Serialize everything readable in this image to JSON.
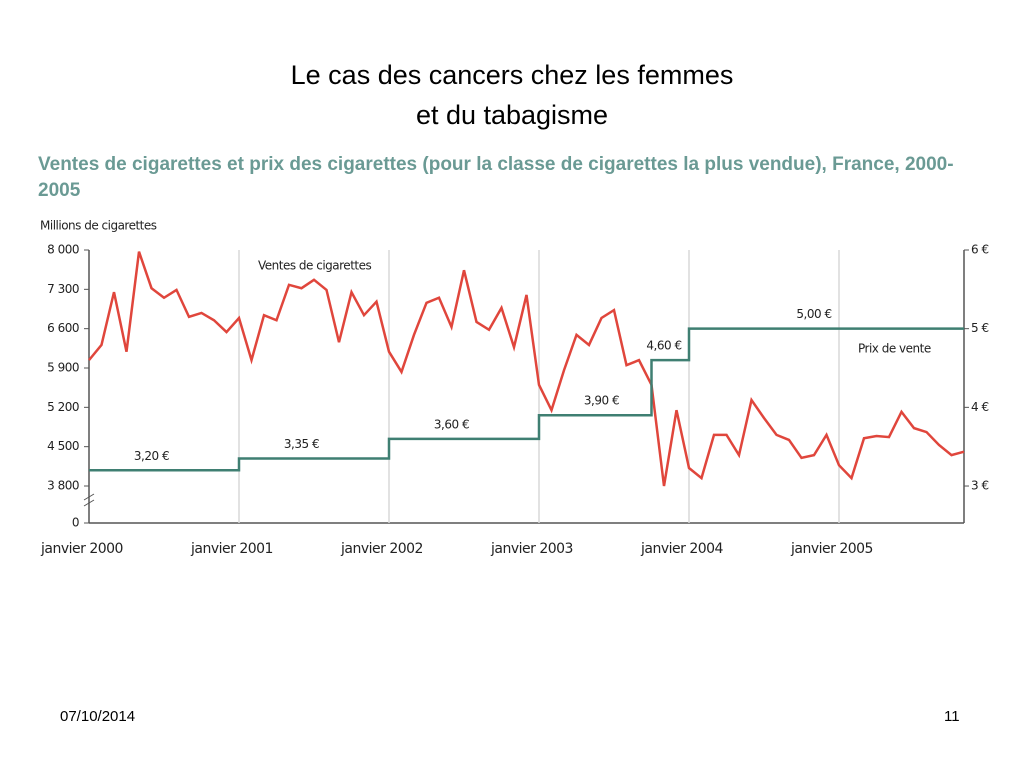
{
  "slide": {
    "title_lines": [
      "Le cas des cancers chez les femmes",
      "et du tabagisme"
    ],
    "date": "07/10/2014",
    "page": "11"
  },
  "chart_data": {
    "type": "line",
    "title": "Ventes de cigarettes et prix des cigarettes (pour la classe de cigarettes la plus vendue), France, 2000-2005",
    "y_label": "Millions de cigarettes",
    "categories": [
      "janvier 2000",
      null,
      null,
      null,
      null,
      null,
      null,
      null,
      null,
      null,
      null,
      null,
      "janvier 2001",
      null,
      null,
      null,
      null,
      null,
      null,
      null,
      null,
      null,
      null,
      null,
      "janvier 2002",
      null,
      null,
      null,
      null,
      null,
      null,
      null,
      null,
      null,
      null,
      null,
      "janvier 2003",
      null,
      null,
      null,
      null,
      null,
      null,
      null,
      null,
      null,
      null,
      null,
      "janvier 2004",
      null,
      null,
      null,
      null,
      null,
      null,
      null,
      null,
      null,
      null,
      null,
      "janvier 2005",
      null,
      null,
      null,
      null,
      null,
      null,
      null,
      null,
      null,
      null
    ],
    "series": [
      {
        "name": "Ventes de cigarettes",
        "color": "#e0463c",
        "axis": "y",
        "values": [
          6040,
          6310,
          7250,
          6190,
          7970,
          7320,
          7150,
          7290,
          6810,
          6880,
          6750,
          6540,
          6790,
          6040,
          6840,
          6750,
          7380,
          7320,
          7470,
          7290,
          6360,
          7250,
          6840,
          7080,
          6190,
          5830,
          6490,
          7060,
          7150,
          6630,
          7640,
          6720,
          6580,
          6970,
          6270,
          7200,
          5600,
          5150,
          5860,
          6490,
          6310,
          6790,
          6930,
          5950,
          6040,
          5600,
          3690,
          5150,
          4120,
          3940,
          4710,
          4710,
          4350,
          5330,
          5010,
          4710,
          4620,
          4300,
          4350,
          4710,
          4170,
          3940,
          4650,
          4690,
          4670,
          5120,
          4830,
          4760,
          4530,
          4350,
          4410
        ]
      },
      {
        "name": "Prix de vente",
        "color": "#3f7f72",
        "axis": "y2",
        "step": true,
        "values": [
          3.2,
          3.2,
          3.2,
          3.2,
          3.2,
          3.2,
          3.2,
          3.2,
          3.2,
          3.2,
          3.2,
          3.2,
          3.35,
          3.35,
          3.35,
          3.35,
          3.35,
          3.35,
          3.35,
          3.35,
          3.35,
          3.35,
          3.35,
          3.35,
          3.6,
          3.6,
          3.6,
          3.6,
          3.6,
          3.6,
          3.6,
          3.6,
          3.6,
          3.6,
          3.6,
          3.6,
          3.9,
          3.9,
          3.9,
          3.9,
          3.9,
          3.9,
          3.9,
          3.9,
          3.9,
          4.6,
          4.6,
          4.6,
          5.0,
          5.0,
          5.0,
          5.0,
          5.0,
          5.0,
          5.0,
          5.0,
          5.0,
          5.0,
          5.0,
          5.0,
          5.0,
          5.0,
          5.0,
          5.0,
          5.0,
          5.0,
          5.0,
          5.0,
          5.0,
          5.0,
          5.0
        ],
        "value_labels": [
          null,
          null,
          null,
          null,
          null,
          "3,20 €",
          null,
          null,
          null,
          null,
          null,
          null,
          null,
          null,
          null,
          null,
          null,
          "3,35 €",
          null,
          null,
          null,
          null,
          null,
          null,
          null,
          null,
          null,
          null,
          null,
          "3,60 €",
          null,
          null,
          null,
          null,
          null,
          null,
          null,
          null,
          null,
          null,
          null,
          "3,90 €",
          null,
          null,
          null,
          null,
          "4,60 €",
          null,
          null,
          null,
          null,
          null,
          null,
          null,
          null,
          null,
          null,
          null,
          "5,00 €",
          null,
          null,
          null,
          null,
          null,
          null,
          null,
          null,
          null,
          null,
          null,
          null
        ]
      }
    ],
    "ylim": [
      0,
      8000
    ],
    "y_break": [
      0,
      3800
    ],
    "yticks": [
      0,
      {
        "value": 3800,
        "label": "3 800"
      },
      {
        "value": 4500,
        "label": "4 500"
      },
      {
        "value": 5200,
        "label": "5 200"
      },
      {
        "value": 5900,
        "label": "5 900"
      },
      {
        "value": 6600,
        "label": "6 600"
      },
      {
        "value": 7300,
        "label": "7 300"
      },
      {
        "value": 8000,
        "label": "8 000"
      }
    ],
    "y2lim": [
      2.53,
      6
    ],
    "y2ticks": [
      {
        "value": 3,
        "label": "3 €"
      },
      {
        "value": 4,
        "label": "4 €"
      },
      {
        "value": 5,
        "label": "5 €"
      },
      {
        "value": 6,
        "label": "6 €"
      }
    ],
    "grid": true
  }
}
